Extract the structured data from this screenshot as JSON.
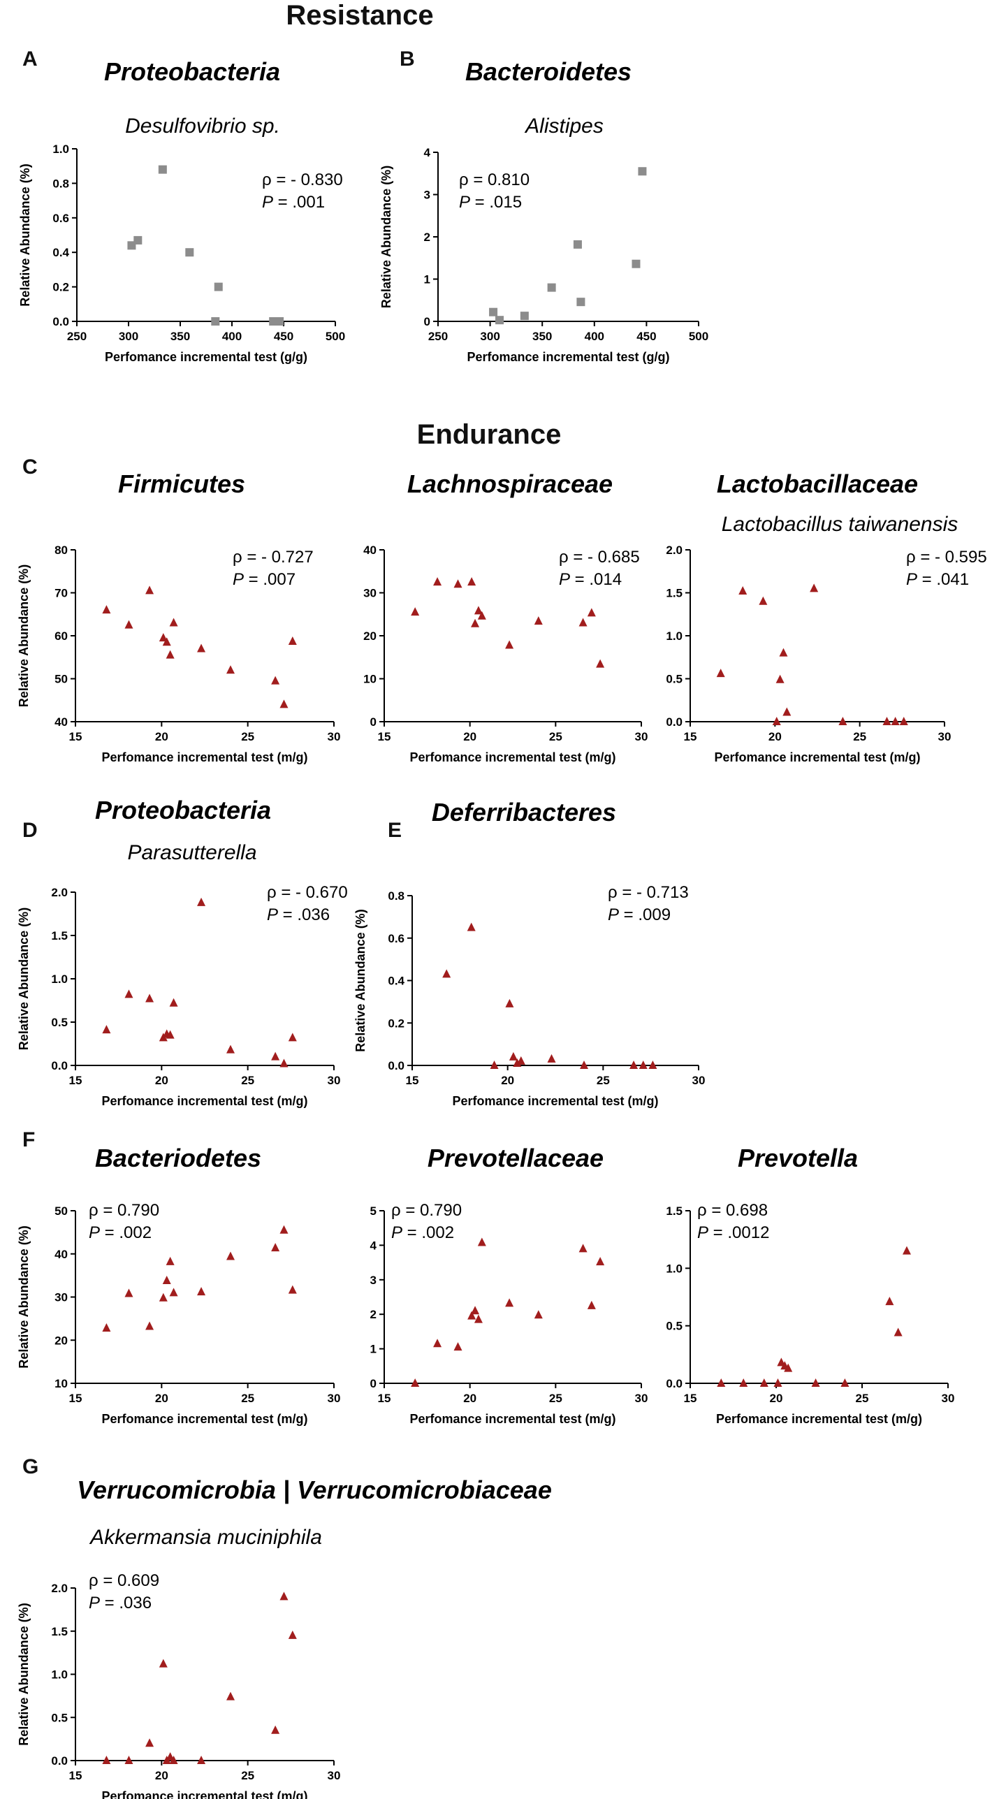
{
  "sections": {
    "resistance": "Resistance",
    "endurance": "Endurance"
  },
  "panel_letters": [
    "A",
    "B",
    "C",
    "D",
    "E",
    "F",
    "G"
  ],
  "colors": {
    "resistance_marker": "#8c8c8c",
    "endurance_marker": "#a11d1d",
    "axis": "#000000"
  },
  "chart_data": [
    {
      "id": "A",
      "type": "scatter",
      "marker": "square",
      "title": "Proteobacteria",
      "subtitle": "Desulfovibrio sp.",
      "stat_rho": "ρ = - 0.830",
      "stat_p_label": "P",
      "stat_p_value": " = .001",
      "xlabel": "Perfomance incremental test (g/g)",
      "ylabel": "Relative Abundance (%)",
      "xlim": [
        250,
        500
      ],
      "ylim": [
        0,
        1.0
      ],
      "xticks": [
        250,
        300,
        350,
        400,
        450,
        500
      ],
      "xtick_labels": [
        "250",
        "300",
        "350",
        "400",
        "450",
        "500"
      ],
      "yticks": [
        0,
        0.2,
        0.4,
        0.6,
        0.8,
        1.0
      ],
      "ytick_labels": [
        "0.0",
        "0.2",
        "0.4",
        "0.6",
        "0.8",
        "1.0"
      ],
      "x": [
        303,
        309,
        333,
        359,
        384,
        387,
        440,
        446
      ],
      "y": [
        0.44,
        0.47,
        0.88,
        0.4,
        0.0,
        0.2,
        0.0,
        0.0
      ]
    },
    {
      "id": "B",
      "type": "scatter",
      "marker": "square",
      "title": "Bacteroidetes",
      "subtitle": "Alistipes",
      "stat_rho": "ρ = 0.810",
      "stat_p_label": "P",
      "stat_p_value": " = .015",
      "xlabel": "Perfomance incremental test (g/g)",
      "ylabel": "Relative Abundance (%)",
      "xlim": [
        250,
        500
      ],
      "ylim": [
        0,
        4
      ],
      "xticks": [
        250,
        300,
        350,
        400,
        450,
        500
      ],
      "xtick_labels": [
        "250",
        "300",
        "350",
        "400",
        "450",
        "500"
      ],
      "yticks": [
        0,
        1,
        2,
        3,
        4
      ],
      "ytick_labels": [
        "0",
        "1",
        "2",
        "3",
        "4"
      ],
      "x": [
        303,
        309,
        333,
        359,
        384,
        387,
        440,
        446
      ],
      "y": [
        0.22,
        0.03,
        0.13,
        0.8,
        1.82,
        0.46,
        1.36,
        3.55
      ]
    },
    {
      "id": "C1",
      "type": "scatter",
      "marker": "triangle",
      "title": "Firmicutes",
      "subtitle": "",
      "stat_rho": "ρ = - 0.727",
      "stat_p_label": "P",
      "stat_p_value": " = .007",
      "xlabel": "Perfomance incremental test (m/g)",
      "ylabel": "Relative Abundance (%)",
      "xlim": [
        15,
        30
      ],
      "ylim": [
        40,
        80
      ],
      "xticks": [
        15,
        20,
        25,
        30
      ],
      "xtick_labels": [
        "15",
        "20",
        "25",
        "30"
      ],
      "yticks": [
        40,
        50,
        60,
        70,
        80
      ],
      "ytick_labels": [
        "40",
        "50",
        "60",
        "70",
        "80"
      ],
      "x": [
        16.8,
        18.1,
        19.3,
        20.1,
        20.3,
        20.5,
        20.7,
        22.3,
        24.0,
        26.6,
        27.1,
        27.6
      ],
      "y": [
        66.0,
        62.5,
        70.5,
        59.5,
        58.5,
        55.5,
        63.0,
        57.0,
        52.0,
        49.5,
        44.0,
        58.7
      ]
    },
    {
      "id": "C2",
      "type": "scatter",
      "marker": "triangle",
      "title": "Lachnospiraceae",
      "subtitle": "",
      "stat_rho": "ρ = - 0.685",
      "stat_p_label": "P",
      "stat_p_value": " = .014",
      "xlabel": "Perfomance incremental test (m/g)",
      "ylabel": "",
      "xlim": [
        15,
        30
      ],
      "ylim": [
        0,
        40
      ],
      "xticks": [
        15,
        20,
        25,
        30
      ],
      "xtick_labels": [
        "15",
        "20",
        "25",
        "30"
      ],
      "yticks": [
        0,
        10,
        20,
        30,
        40
      ],
      "ytick_labels": [
        "0",
        "10",
        "20",
        "30",
        "40"
      ],
      "x": [
        16.8,
        18.1,
        19.3,
        20.1,
        20.3,
        20.5,
        20.7,
        22.3,
        24.0,
        26.6,
        27.1,
        27.6
      ],
      "y": [
        25.5,
        32.5,
        32.0,
        32.5,
        22.8,
        25.8,
        24.6,
        17.8,
        23.4,
        23.0,
        25.3,
        13.4
      ]
    },
    {
      "id": "C3",
      "type": "scatter",
      "marker": "triangle",
      "title": "Lactobacillaceae",
      "subtitle": "Lactobacillus taiwanensis",
      "stat_rho": "ρ = - 0.595",
      "stat_p_label": "P",
      "stat_p_value": " = .041",
      "xlabel": "Perfomance incremental test (m/g)",
      "ylabel": "",
      "xlim": [
        15,
        30
      ],
      "ylim": [
        0,
        2.0
      ],
      "xticks": [
        15,
        20,
        25,
        30
      ],
      "xtick_labels": [
        "15",
        "20",
        "25",
        "30"
      ],
      "yticks": [
        0,
        0.5,
        1.0,
        1.5,
        2.0
      ],
      "ytick_labels": [
        "0.0",
        "0.5",
        "1.0",
        "1.5",
        "2.0"
      ],
      "x": [
        16.8,
        18.1,
        19.3,
        20.1,
        20.3,
        20.5,
        20.7,
        22.3,
        24.0,
        26.6,
        27.1,
        27.6
      ],
      "y": [
        0.56,
        1.52,
        1.4,
        0.0,
        0.49,
        0.8,
        0.11,
        1.55,
        0.0,
        0.0,
        0.0,
        0.0
      ]
    },
    {
      "id": "D",
      "type": "scatter",
      "marker": "triangle",
      "title": "Proteobacteria",
      "subtitle": "Parasutterella",
      "stat_rho": "ρ = - 0.670",
      "stat_p_label": "P",
      "stat_p_value": " = .036",
      "xlabel": "Perfomance incremental test (m/g)",
      "ylabel": "Relative Abundance (%)",
      "xlim": [
        15,
        30
      ],
      "ylim": [
        0,
        2.0
      ],
      "xticks": [
        15,
        20,
        25,
        30
      ],
      "xtick_labels": [
        "15",
        "20",
        "25",
        "30"
      ],
      "yticks": [
        0,
        0.5,
        1.0,
        1.5,
        2.0
      ],
      "ytick_labels": [
        "0.0",
        "0.5",
        "1.0",
        "1.5",
        "2.0"
      ],
      "x": [
        16.8,
        18.1,
        19.3,
        20.1,
        20.3,
        20.5,
        20.7,
        22.3,
        24.0,
        26.6,
        27.1,
        27.6
      ],
      "y": [
        0.41,
        0.82,
        0.77,
        0.32,
        0.36,
        0.35,
        0.72,
        1.88,
        0.18,
        0.1,
        0.02,
        0.32
      ]
    },
    {
      "id": "E",
      "type": "scatter",
      "marker": "triangle",
      "title": "Deferribacteres",
      "subtitle": "",
      "stat_rho": "ρ = - 0.713",
      "stat_p_label": "P",
      "stat_p_value": " = .009",
      "xlabel": "Perfomance incremental test (m/g)",
      "ylabel": "Relative Abundance (%)",
      "xlim": [
        15,
        30
      ],
      "ylim": [
        0,
        0.8
      ],
      "xticks": [
        15,
        20,
        25,
        30
      ],
      "xtick_labels": [
        "15",
        "20",
        "25",
        "30"
      ],
      "yticks": [
        0,
        0.2,
        0.4,
        0.6,
        0.8
      ],
      "ytick_labels": [
        "0.0",
        "0.2",
        "0.4",
        "0.6",
        "0.8"
      ],
      "x": [
        16.8,
        18.1,
        19.3,
        20.1,
        20.3,
        20.5,
        20.7,
        22.3,
        24.0,
        26.6,
        27.1,
        27.6
      ],
      "y": [
        0.43,
        0.65,
        0.0,
        0.29,
        0.04,
        0.01,
        0.02,
        0.03,
        0.0,
        0.0,
        0.0,
        0.0
      ]
    },
    {
      "id": "F1",
      "type": "scatter",
      "marker": "triangle",
      "title": "Bacteriodetes",
      "subtitle": "",
      "stat_rho": "ρ =  0.790",
      "stat_p_label": "P",
      "stat_p_value": " = .002",
      "xlabel": "Perfomance incremental test (m/g)",
      "ylabel": "Relative Abundance (%)",
      "xlim": [
        15,
        30
      ],
      "ylim": [
        10,
        50
      ],
      "xticks": [
        15,
        20,
        25,
        30
      ],
      "xtick_labels": [
        "15",
        "20",
        "25",
        "30"
      ],
      "yticks": [
        10,
        20,
        30,
        40,
        50
      ],
      "ytick_labels": [
        "10",
        "20",
        "30",
        "40",
        "50"
      ],
      "x": [
        16.8,
        18.1,
        19.3,
        20.1,
        20.3,
        20.5,
        20.7,
        22.3,
        24.0,
        26.6,
        27.1,
        27.6
      ],
      "y": [
        22.8,
        30.8,
        23.2,
        29.8,
        33.8,
        38.2,
        31.0,
        31.2,
        39.4,
        41.4,
        45.5,
        31.6
      ]
    },
    {
      "id": "F2",
      "type": "scatter",
      "marker": "triangle",
      "title": "Prevotellaceae",
      "subtitle": "",
      "stat_rho": "ρ = 0.790",
      "stat_p_label": "P",
      "stat_p_value": " = .002",
      "xlabel": "Perfomance incremental test (m/g)",
      "ylabel": "",
      "xlim": [
        15,
        30
      ],
      "ylim": [
        0,
        5
      ],
      "xticks": [
        15,
        20,
        25,
        30
      ],
      "xtick_labels": [
        "15",
        "20",
        "25",
        "30"
      ],
      "yticks": [
        0,
        1,
        2,
        3,
        4,
        5
      ],
      "ytick_labels": [
        "0",
        "1",
        "2",
        "3",
        "4",
        "5"
      ],
      "x": [
        16.8,
        18.1,
        19.3,
        20.1,
        20.3,
        20.5,
        20.7,
        22.3,
        24.0,
        26.6,
        27.1,
        27.6
      ],
      "y": [
        0.0,
        1.15,
        1.05,
        1.95,
        2.1,
        1.85,
        4.08,
        2.32,
        1.98,
        3.9,
        2.25,
        3.52
      ]
    },
    {
      "id": "F3",
      "type": "scatter",
      "marker": "triangle",
      "title": "Prevotella",
      "subtitle": "",
      "stat_rho": "ρ = 0.698",
      "stat_p_label": "P",
      "stat_p_value": " = .0012",
      "xlabel": "Perfomance incremental test (m/g)",
      "ylabel": "",
      "xlim": [
        15,
        30
      ],
      "ylim": [
        0,
        1.5
      ],
      "xticks": [
        15,
        20,
        25,
        30
      ],
      "xtick_labels": [
        "15",
        "20",
        "25",
        "30"
      ],
      "yticks": [
        0,
        0.5,
        1.0,
        1.5
      ],
      "ytick_labels": [
        "0.0",
        "0.5",
        "1.0",
        "1.5"
      ],
      "x": [
        16.8,
        18.1,
        19.3,
        20.1,
        20.3,
        20.5,
        20.7,
        22.3,
        24.0,
        26.6,
        27.1,
        27.6
      ],
      "y": [
        0.0,
        0.0,
        0.0,
        0.0,
        0.18,
        0.15,
        0.13,
        0.0,
        0.0,
        0.71,
        0.44,
        1.15
      ]
    },
    {
      "id": "G",
      "type": "scatter",
      "marker": "triangle",
      "title": "Verrucomicrobia | Verrucomicrobiaceae",
      "subtitle": "Akkermansia muciniphila",
      "stat_rho": "ρ =  0.609",
      "stat_p_label": "P",
      "stat_p_value": " = .036",
      "xlabel": "Perfomance incremental test (m/g)",
      "ylabel": "Relative Abundance (%)",
      "xlim": [
        15,
        30
      ],
      "ylim": [
        0,
        2.0
      ],
      "xticks": [
        15,
        20,
        25,
        30
      ],
      "xtick_labels": [
        "15",
        "20",
        "25",
        "30"
      ],
      "yticks": [
        0,
        0.5,
        1.0,
        1.5,
        2.0
      ],
      "ytick_labels": [
        "0.0",
        "0.5",
        "1.0",
        "1.5",
        "2.0"
      ],
      "x": [
        16.8,
        18.1,
        19.3,
        20.1,
        20.3,
        20.5,
        20.7,
        22.3,
        24.0,
        26.6,
        27.1,
        27.6
      ],
      "y": [
        0.0,
        0.0,
        0.2,
        1.12,
        0.0,
        0.04,
        0.0,
        0.0,
        0.74,
        0.35,
        1.9,
        1.45
      ]
    }
  ]
}
